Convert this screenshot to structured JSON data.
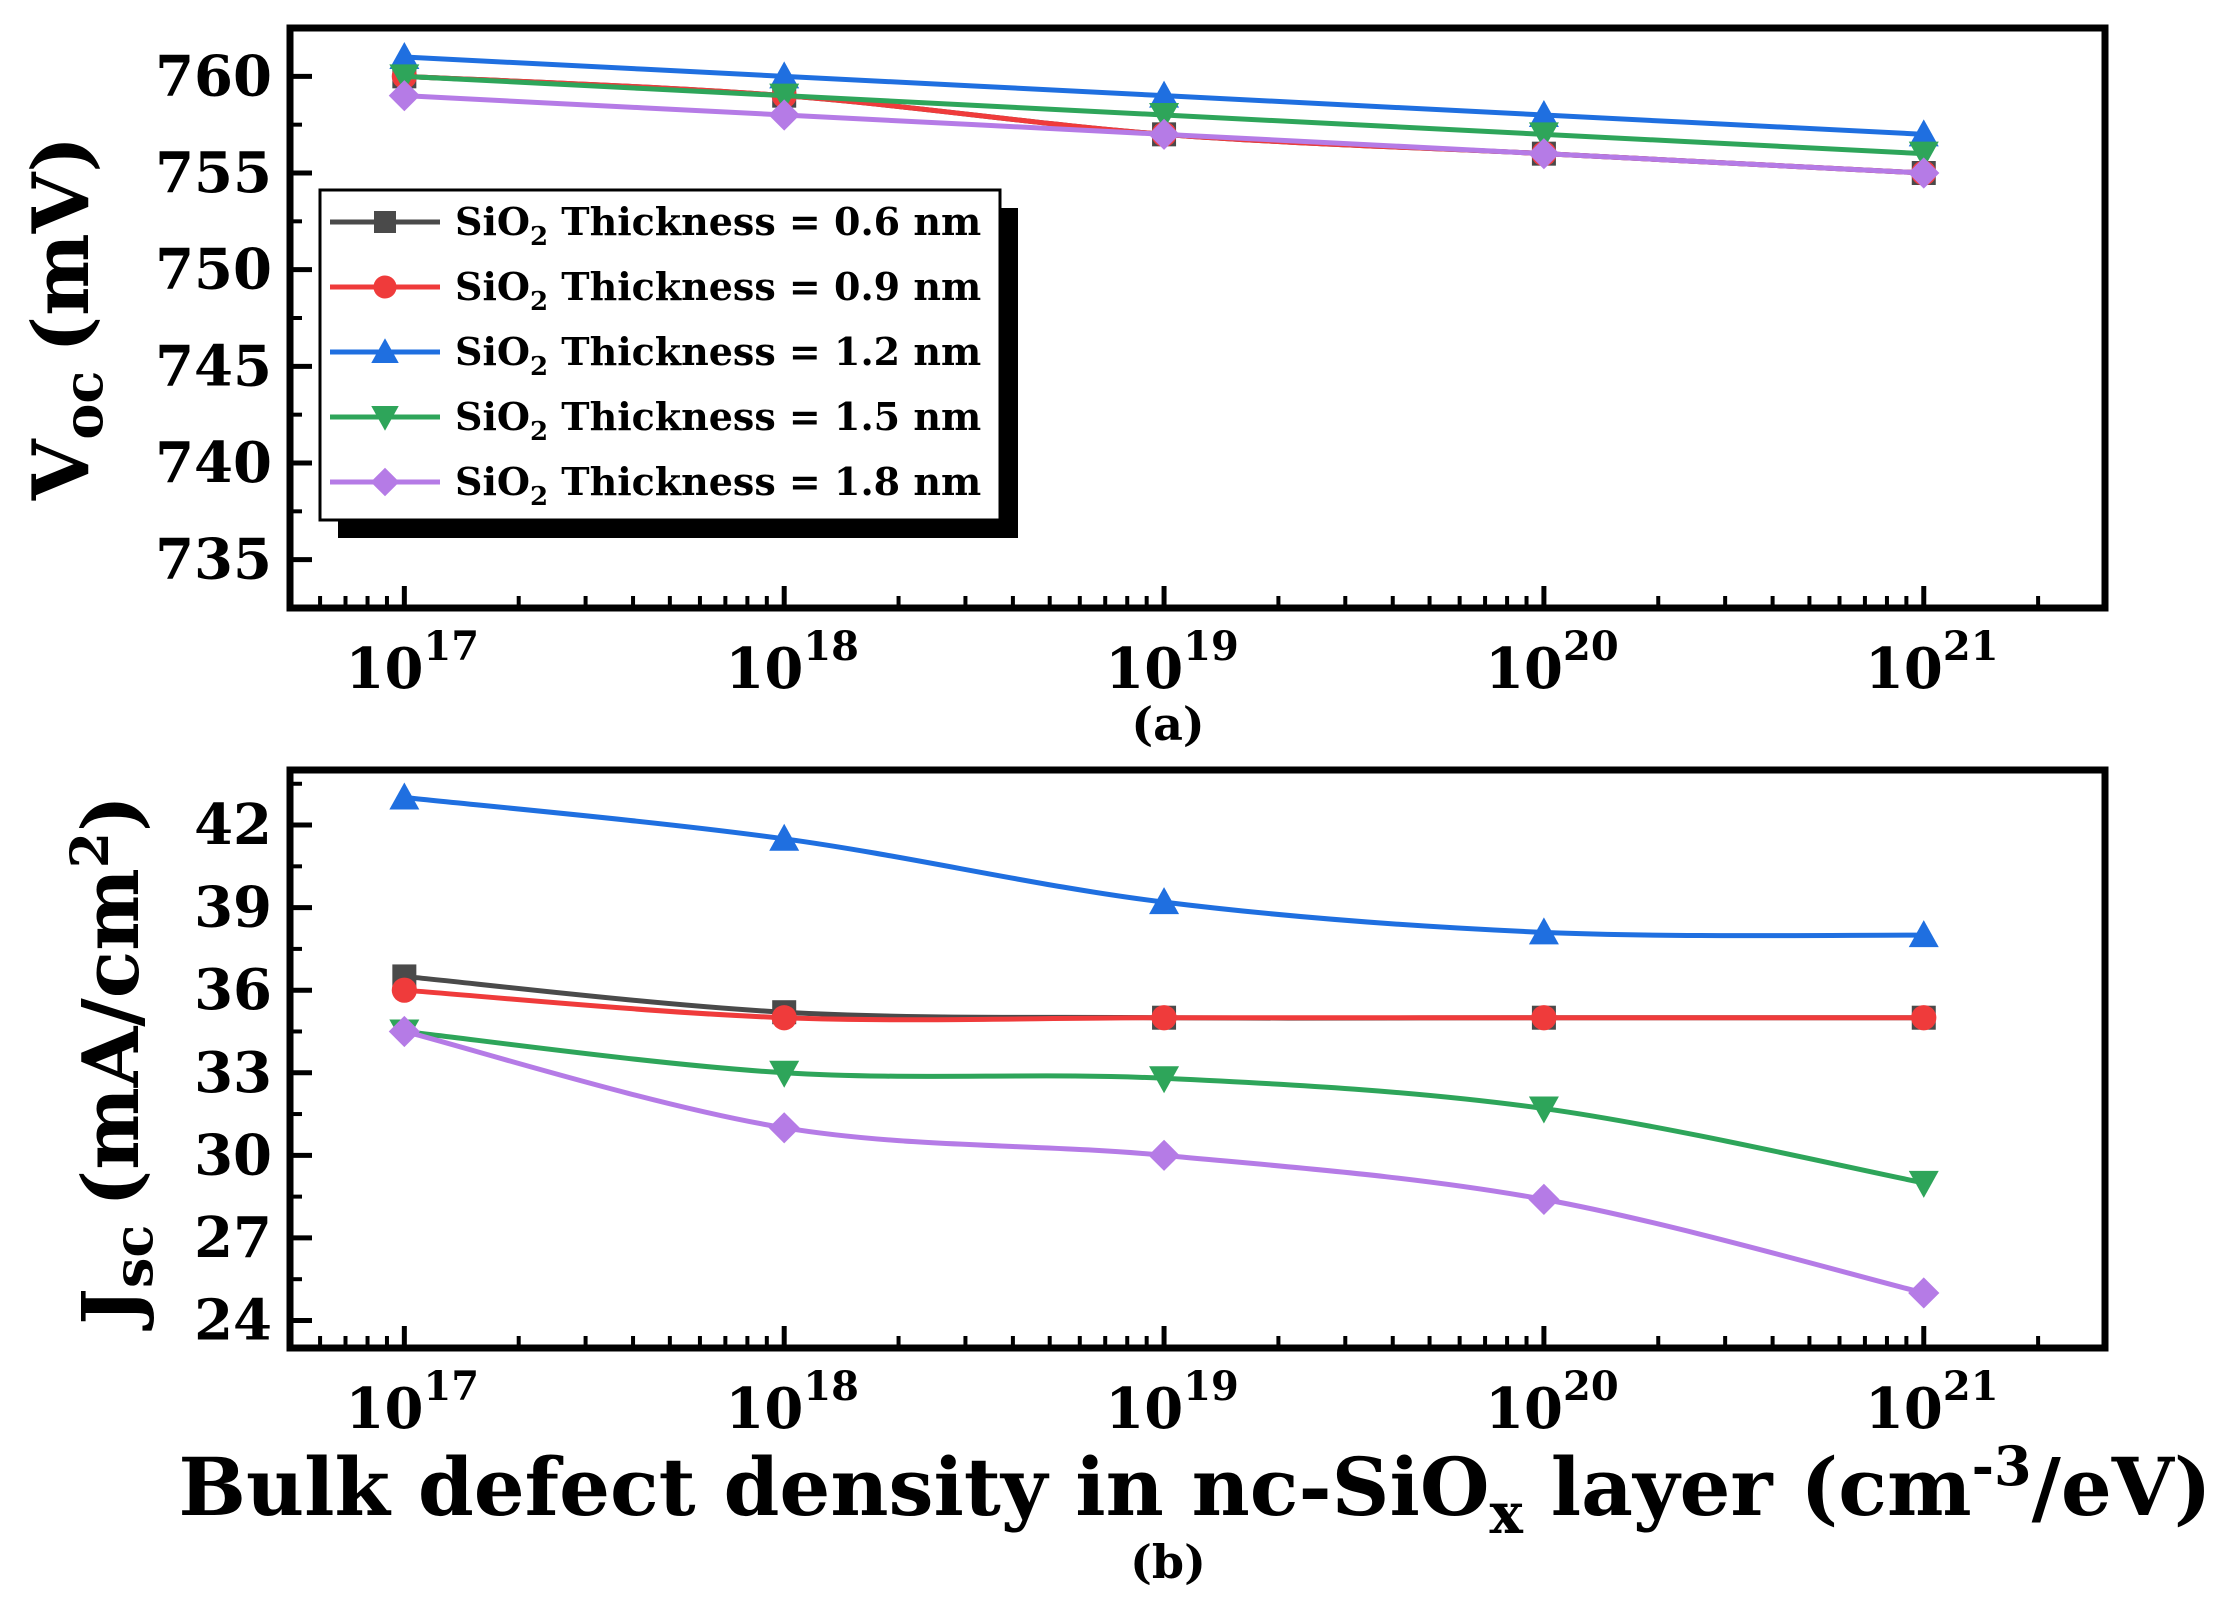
{
  "chart_data": [
    {
      "panel": "(a)",
      "type": "line",
      "x": [
        "1e17",
        "1e18",
        "1e19",
        "1e20",
        "1e21"
      ],
      "x_tick_labels": [
        {
          "base": "10",
          "exp": "17"
        },
        {
          "base": "10",
          "exp": "18"
        },
        {
          "base": "10",
          "exp": "19"
        },
        {
          "base": "10",
          "exp": "20"
        },
        {
          "base": "10",
          "exp": "21"
        }
      ],
      "x_scale": "log",
      "xlim": [
        5e+16,
        3e+21
      ],
      "ylabel": {
        "main": "V",
        "sub": "oc",
        "unit": "(mV)"
      },
      "ylim": [
        732.5,
        762.5
      ],
      "y_ticks": [
        735,
        740,
        745,
        750,
        755,
        760
      ],
      "legend": {
        "placement": "upper-left"
      },
      "series": [
        {
          "name": "SiO2 Thickness = 0.6 nm",
          "label_prefix": "SiO",
          "label_sub": "2",
          "label_suffix": " Thickness = 0.6 nm",
          "color": "#4a4a4a",
          "marker": "square",
          "values": [
            760,
            759,
            757,
            756,
            755
          ]
        },
        {
          "name": "SiO2 Thickness = 0.9 nm",
          "label_prefix": "SiO",
          "label_sub": "2",
          "label_suffix": " Thickness = 0.9 nm",
          "color": "#ef3b3b",
          "marker": "circle",
          "values": [
            760,
            759,
            757,
            756,
            755
          ]
        },
        {
          "name": "SiO2 Thickness = 1.2 nm",
          "label_prefix": "SiO",
          "label_sub": "2",
          "label_suffix": " Thickness = 1.2 nm",
          "color": "#1f6fe0",
          "marker": "triangle-up",
          "values": [
            761,
            760,
            759,
            758,
            757
          ]
        },
        {
          "name": "SiO2 Thickness = 1.5 nm",
          "label_prefix": "SiO",
          "label_sub": "2",
          "label_suffix": " Thickness = 1.5 nm",
          "color": "#2ea55a",
          "marker": "triangle-down",
          "values": [
            760,
            759,
            758,
            757,
            756
          ]
        },
        {
          "name": "SiO2 Thickness = 1.8 nm",
          "label_prefix": "SiO",
          "label_sub": "2",
          "label_suffix": " Thickness = 1.8 nm",
          "color": "#b57be6",
          "marker": "diamond",
          "values": [
            759,
            758,
            757,
            756,
            755
          ]
        }
      ]
    },
    {
      "panel": "(b)",
      "type": "line",
      "x": [
        "1e17",
        "1e18",
        "1e19",
        "1e20",
        "1e21"
      ],
      "x_tick_labels": [
        {
          "base": "10",
          "exp": "17"
        },
        {
          "base": "10",
          "exp": "18"
        },
        {
          "base": "10",
          "exp": "19"
        },
        {
          "base": "10",
          "exp": "20"
        },
        {
          "base": "10",
          "exp": "21"
        }
      ],
      "x_scale": "log",
      "xlim": [
        5e+16,
        3e+21
      ],
      "xlabel": {
        "part1": "Bulk defect density in nc-SiO",
        "sub": "x",
        "part2": " layer (cm",
        "sup": "-3",
        "part3": "/eV)"
      },
      "ylabel": {
        "main": "J",
        "sub": "sc",
        "unit_open": "(mA/cm",
        "unit_sup": "2",
        "unit_close": ")"
      },
      "ylim": [
        23,
        44
      ],
      "y_ticks": [
        24,
        27,
        30,
        33,
        36,
        39,
        42
      ],
      "series": [
        {
          "name": "SiO2 Thickness = 0.6 nm",
          "color": "#4a4a4a",
          "marker": "square",
          "values": [
            36.5,
            35.2,
            35,
            35,
            35
          ]
        },
        {
          "name": "SiO2 Thickness = 0.9 nm",
          "color": "#ef3b3b",
          "marker": "circle",
          "values": [
            36.0,
            35.0,
            35.0,
            35.0,
            35.0
          ]
        },
        {
          "name": "SiO2 Thickness = 1.2 nm",
          "color": "#1f6fe0",
          "marker": "triangle-up",
          "values": [
            43.0,
            41.5,
            39.2,
            38.1,
            38.0
          ]
        },
        {
          "name": "SiO2 Thickness = 1.5 nm",
          "color": "#2ea55a",
          "marker": "triangle-down",
          "values": [
            34.5,
            33.0,
            32.8,
            31.7,
            29.0
          ]
        },
        {
          "name": "SiO2 Thickness = 1.8 nm",
          "color": "#b57be6",
          "marker": "diamond",
          "values": [
            34.5,
            31.0,
            30.0,
            28.4,
            25.0
          ]
        }
      ]
    }
  ]
}
